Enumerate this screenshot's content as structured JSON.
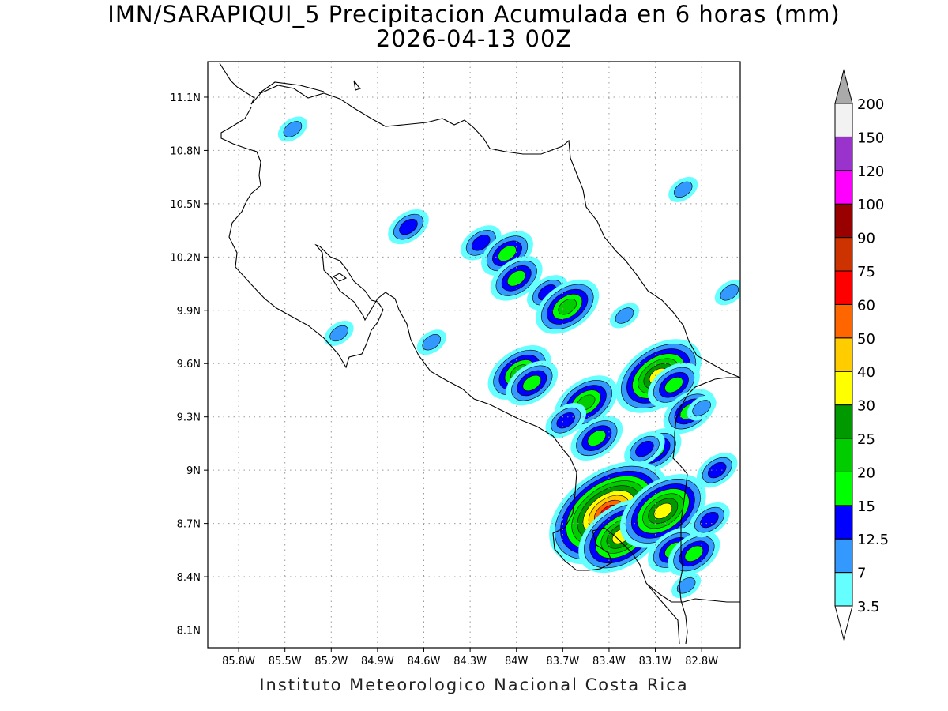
{
  "title_line1": "IMN/SARAPIQUI_5 Precipitacion Acumulada en 6 horas (mm)",
  "title_line2": "2026-04-13 00Z",
  "footer": "Instituto Meteorologico Nacional Costa Rica",
  "map": {
    "lon_range": [
      -86.0,
      -82.55
    ],
    "lat_range": [
      8.0,
      11.3
    ],
    "lon_ticks": [
      {
        "value": -85.8,
        "label": "85.8W"
      },
      {
        "value": -85.5,
        "label": "85.5W"
      },
      {
        "value": -85.2,
        "label": "85.2W"
      },
      {
        "value": -84.9,
        "label": "84.9W"
      },
      {
        "value": -84.6,
        "label": "84.6W"
      },
      {
        "value": -84.3,
        "label": "84.3W"
      },
      {
        "value": -84.0,
        "label": "84W"
      },
      {
        "value": -83.7,
        "label": "83.7W"
      },
      {
        "value": -83.4,
        "label": "83.4W"
      },
      {
        "value": -83.1,
        "label": "83.1W"
      },
      {
        "value": -82.8,
        "label": "82.8W"
      }
    ],
    "lat_ticks": [
      {
        "value": 8.1,
        "label": "8.1N"
      },
      {
        "value": 8.4,
        "label": "8.4N"
      },
      {
        "value": 8.7,
        "label": "8.7N"
      },
      {
        "value": 9.0,
        "label": "9N"
      },
      {
        "value": 9.3,
        "label": "9.3N"
      },
      {
        "value": 9.6,
        "label": "9.6N"
      },
      {
        "value": 9.9,
        "label": "9.9N"
      },
      {
        "value": 10.2,
        "label": "10.2N"
      },
      {
        "value": 10.5,
        "label": "10.5N"
      },
      {
        "value": 10.8,
        "label": "10.8N"
      },
      {
        "value": 11.1,
        "label": "11.1N"
      }
    ]
  },
  "colorbar": [
    {
      "label": "3.5",
      "color": "#66ffff"
    },
    {
      "label": "7",
      "color": "#3399ff"
    },
    {
      "label": "12.5",
      "color": "#0000ff"
    },
    {
      "label": "15",
      "color": "#00ff00"
    },
    {
      "label": "20",
      "color": "#00cc00"
    },
    {
      "label": "25",
      "color": "#009900"
    },
    {
      "label": "30",
      "color": "#ffff00"
    },
    {
      "label": "40",
      "color": "#ffcc00"
    },
    {
      "label": "50",
      "color": "#ff6600"
    },
    {
      "label": "60",
      "color": "#ff0000"
    },
    {
      "label": "75",
      "color": "#cc3300"
    },
    {
      "label": "90",
      "color": "#990000"
    },
    {
      "label": "100",
      "color": "#ff00ff"
    },
    {
      "label": "120",
      "color": "#9933cc"
    },
    {
      "label": "150",
      "color": "#f2f2f2"
    },
    {
      "label": "200",
      "color": "#aaaaaa"
    }
  ],
  "precip_cells": [
    {
      "lon": -84.7,
      "lat": 10.37,
      "level": 2
    },
    {
      "lon": -84.23,
      "lat": 10.28,
      "level": 2
    },
    {
      "lon": -84.06,
      "lat": 10.22,
      "level": 3
    },
    {
      "lon": -84.0,
      "lat": 10.08,
      "level": 3
    },
    {
      "lon": -83.8,
      "lat": 10.0,
      "level": 2
    },
    {
      "lon": -83.67,
      "lat": 9.92,
      "level": 4
    },
    {
      "lon": -83.3,
      "lat": 9.87,
      "level": 1
    },
    {
      "lon": -84.55,
      "lat": 9.72,
      "level": 1
    },
    {
      "lon": -83.98,
      "lat": 9.55,
      "level": 4
    },
    {
      "lon": -83.9,
      "lat": 9.49,
      "level": 3
    },
    {
      "lon": -83.55,
      "lat": 9.38,
      "level": 4
    },
    {
      "lon": -83.48,
      "lat": 9.18,
      "level": 3
    },
    {
      "lon": -83.68,
      "lat": 9.28,
      "level": 2
    },
    {
      "lon": -83.08,
      "lat": 9.53,
      "level": 6
    },
    {
      "lon": -82.98,
      "lat": 9.48,
      "level": 3
    },
    {
      "lon": -82.88,
      "lat": 9.33,
      "level": 3
    },
    {
      "lon": -83.1,
      "lat": 9.11,
      "level": 3
    },
    {
      "lon": -83.17,
      "lat": 9.12,
      "level": 2
    },
    {
      "lon": -83.4,
      "lat": 8.76,
      "level": 9
    },
    {
      "lon": -83.32,
      "lat": 8.63,
      "level": 6
    },
    {
      "lon": -83.05,
      "lat": 8.77,
      "level": 6
    },
    {
      "lon": -82.98,
      "lat": 8.55,
      "level": 3
    },
    {
      "lon": -82.85,
      "lat": 8.53,
      "level": 3
    },
    {
      "lon": -82.75,
      "lat": 8.72,
      "level": 2
    },
    {
      "lon": -82.8,
      "lat": 9.35,
      "level": 1
    },
    {
      "lon": -82.7,
      "lat": 9.0,
      "level": 2
    },
    {
      "lon": -82.62,
      "lat": 10.0,
      "level": 1
    },
    {
      "lon": -82.92,
      "lat": 10.58,
      "level": 1
    },
    {
      "lon": -82.9,
      "lat": 8.35,
      "level": 1
    },
    {
      "lon": -85.45,
      "lat": 10.92,
      "level": 1
    },
    {
      "lon": -85.15,
      "lat": 9.77,
      "level": 1
    }
  ]
}
